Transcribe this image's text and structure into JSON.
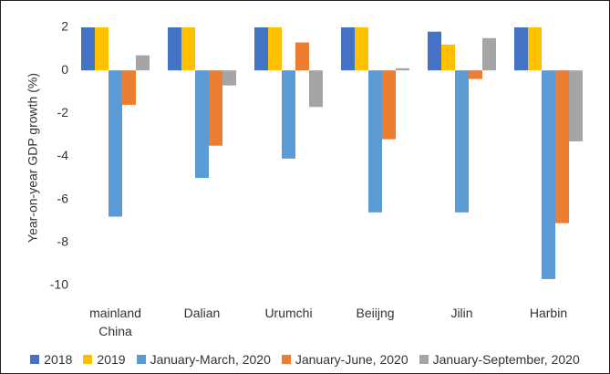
{
  "chart_data": {
    "type": "bar",
    "y_label": "Year-on-year GDP growth (%)",
    "categories": [
      "mainland China",
      "Dalian",
      "Urumchi",
      "Beiijng",
      "Jilin",
      "Harbin"
    ],
    "series": [
      {
        "name": "2018",
        "color": "#4472c4",
        "values": [
          2,
          2,
          2,
          2,
          1.8,
          2
        ]
      },
      {
        "name": "2019",
        "color": "#ffc000",
        "values": [
          2,
          2,
          2,
          2,
          1.2,
          2
        ]
      },
      {
        "name": "January-March, 2020",
        "color": "#5b9bd5",
        "values": [
          -6.8,
          -5.0,
          -4.1,
          -6.6,
          -6.6,
          -9.7
        ]
      },
      {
        "name": "January-June, 2020",
        "color": "#ed7d31",
        "values": [
          -1.6,
          -3.5,
          1.3,
          -3.2,
          -0.4,
          -7.1
        ]
      },
      {
        "name": "January-September, 2020",
        "color": "#a5a5a5",
        "values": [
          0.7,
          -0.7,
          -1.7,
          0.1,
          1.5,
          -3.3
        ]
      }
    ],
    "ylim": [
      -10,
      2
    ],
    "yticks": [
      -10,
      -8,
      -6,
      -4,
      -2,
      0,
      2
    ],
    "legend": "bottom"
  }
}
